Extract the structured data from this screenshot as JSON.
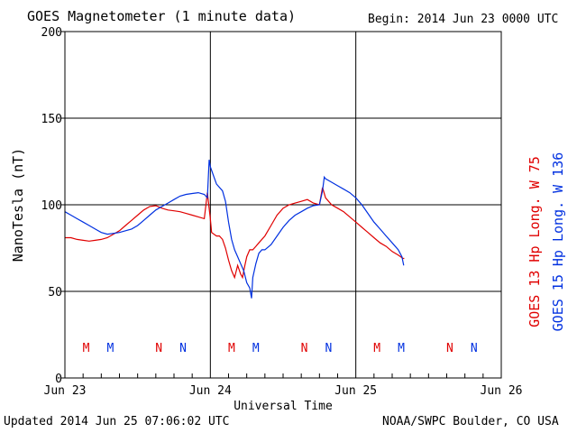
{
  "header": {
    "title": "GOES Magnetometer (1 minute data)",
    "begin": "Begin:  2014 Jun 23 0000 UTC"
  },
  "footer": {
    "updated": "Updated 2014 Jun 25 07:06:02 UTC",
    "credit": "NOAA/SWPC Boulder, CO USA"
  },
  "right_labels": {
    "goes13": "GOES 13 Hp  Long. W 75",
    "goes15": "GOES 15 Hp  Long. W 136"
  },
  "colors": {
    "goes13": "#e00000",
    "goes15": "#0030e0",
    "axis": "#000000"
  },
  "chart_data": {
    "type": "line",
    "xlabel": "Universal Time",
    "ylabel": "NanoTesla (nT)",
    "xlim": [
      0,
      72
    ],
    "ylim": [
      0,
      200
    ],
    "x_ticks": [
      {
        "x": 0,
        "label": "Jun 23"
      },
      {
        "x": 24,
        "label": "Jun 24"
      },
      {
        "x": 48,
        "label": "Jun 25"
      },
      {
        "x": 72,
        "label": "Jun 26"
      }
    ],
    "y_ticks": [
      0,
      50,
      100,
      150,
      200
    ],
    "grid": true,
    "markers": [
      {
        "x": 3.5,
        "label": "M",
        "series": "goes13"
      },
      {
        "x": 7.5,
        "label": "M",
        "series": "goes15"
      },
      {
        "x": 15.5,
        "label": "N",
        "series": "goes13"
      },
      {
        "x": 19.5,
        "label": "N",
        "series": "goes15"
      },
      {
        "x": 27.5,
        "label": "M",
        "series": "goes13"
      },
      {
        "x": 31.5,
        "label": "M",
        "series": "goes15"
      },
      {
        "x": 39.5,
        "label": "N",
        "series": "goes13"
      },
      {
        "x": 43.5,
        "label": "N",
        "series": "goes15"
      },
      {
        "x": 51.5,
        "label": "M",
        "series": "goes13"
      },
      {
        "x": 55.5,
        "label": "M",
        "series": "goes15"
      },
      {
        "x": 63.5,
        "label": "N",
        "series": "goes13"
      },
      {
        "x": 67.5,
        "label": "N",
        "series": "goes15"
      }
    ],
    "series": [
      {
        "name": "GOES 13 Hp  Long. W 75",
        "key": "goes13",
        "points": [
          [
            0,
            81
          ],
          [
            1,
            81
          ],
          [
            2,
            80
          ],
          [
            3,
            79.5
          ],
          [
            4,
            79
          ],
          [
            5,
            79.5
          ],
          [
            6,
            80
          ],
          [
            7,
            81
          ],
          [
            8,
            83
          ],
          [
            9,
            85
          ],
          [
            10,
            88
          ],
          [
            11,
            91
          ],
          [
            12,
            94
          ],
          [
            13,
            97
          ],
          [
            14,
            99
          ],
          [
            15,
            99.5
          ],
          [
            16,
            98
          ],
          [
            17,
            97
          ],
          [
            18,
            96.5
          ],
          [
            19,
            96
          ],
          [
            20,
            95
          ],
          [
            21,
            94
          ],
          [
            22,
            93
          ],
          [
            23,
            92
          ],
          [
            23.5,
            107
          ],
          [
            24,
            92
          ],
          [
            24.2,
            84
          ],
          [
            25,
            82
          ],
          [
            25.5,
            82
          ],
          [
            26,
            80
          ],
          [
            26.5,
            75
          ],
          [
            27,
            68
          ],
          [
            27.5,
            62
          ],
          [
            28,
            58
          ],
          [
            28.5,
            65
          ],
          [
            29,
            60
          ],
          [
            29.3,
            58
          ],
          [
            29.7,
            65
          ],
          [
            30,
            70
          ],
          [
            30.5,
            74
          ],
          [
            31,
            74
          ],
          [
            31.5,
            76
          ],
          [
            32,
            78
          ],
          [
            33,
            82
          ],
          [
            34,
            88
          ],
          [
            35,
            94
          ],
          [
            36,
            98
          ],
          [
            37,
            100
          ],
          [
            38,
            101
          ],
          [
            39,
            102
          ],
          [
            40,
            103
          ],
          [
            41,
            101
          ],
          [
            42,
            100
          ],
          [
            42.5,
            110
          ],
          [
            43,
            104
          ],
          [
            44,
            100
          ],
          [
            45,
            98
          ],
          [
            46,
            96
          ],
          [
            47,
            93
          ],
          [
            48,
            90
          ],
          [
            49,
            87
          ],
          [
            50,
            84
          ],
          [
            51,
            81
          ],
          [
            52,
            78
          ],
          [
            53,
            76
          ],
          [
            54,
            73
          ],
          [
            55,
            71
          ],
          [
            55.8,
            69
          ],
          [
            56,
            69
          ]
        ]
      },
      {
        "name": "GOES 15 Hp  Long. W 136",
        "key": "goes15",
        "points": [
          [
            0,
            96
          ],
          [
            1,
            94
          ],
          [
            2,
            92
          ],
          [
            3,
            90
          ],
          [
            4,
            88
          ],
          [
            5,
            86
          ],
          [
            6,
            84
          ],
          [
            7,
            83
          ],
          [
            8,
            83.5
          ],
          [
            9,
            84
          ],
          [
            10,
            85
          ],
          [
            11,
            86
          ],
          [
            12,
            88
          ],
          [
            13,
            91
          ],
          [
            14,
            94
          ],
          [
            15,
            97
          ],
          [
            16,
            99
          ],
          [
            17,
            101
          ],
          [
            18,
            103
          ],
          [
            19,
            105
          ],
          [
            20,
            106
          ],
          [
            21,
            106.5
          ],
          [
            22,
            107
          ],
          [
            23,
            106
          ],
          [
            23.5,
            104
          ],
          [
            23.8,
            126
          ],
          [
            24,
            122
          ],
          [
            24.5,
            117
          ],
          [
            25,
            112
          ],
          [
            26,
            108
          ],
          [
            26.5,
            102
          ],
          [
            27,
            90
          ],
          [
            27.5,
            80
          ],
          [
            28,
            74
          ],
          [
            28.5,
            70
          ],
          [
            29,
            66
          ],
          [
            29.5,
            62
          ],
          [
            30,
            55
          ],
          [
            30.5,
            52
          ],
          [
            30.8,
            46
          ],
          [
            31,
            58
          ],
          [
            31.5,
            66
          ],
          [
            32,
            72
          ],
          [
            32.5,
            74
          ],
          [
            33,
            74
          ],
          [
            34,
            77
          ],
          [
            35,
            82
          ],
          [
            36,
            87
          ],
          [
            37,
            91
          ],
          [
            38,
            94
          ],
          [
            39,
            96
          ],
          [
            40,
            98
          ],
          [
            41,
            99.5
          ],
          [
            42,
            100
          ],
          [
            42.5,
            108
          ],
          [
            42.8,
            116
          ],
          [
            43,
            115
          ],
          [
            44,
            113
          ],
          [
            45,
            111
          ],
          [
            46,
            109
          ],
          [
            47,
            107
          ],
          [
            48,
            104
          ],
          [
            49,
            100
          ],
          [
            50,
            95
          ],
          [
            51,
            90
          ],
          [
            52,
            86
          ],
          [
            53,
            82
          ],
          [
            54,
            78
          ],
          [
            55,
            74
          ],
          [
            55.6,
            70
          ],
          [
            55.9,
            65
          ]
        ]
      }
    ]
  }
}
